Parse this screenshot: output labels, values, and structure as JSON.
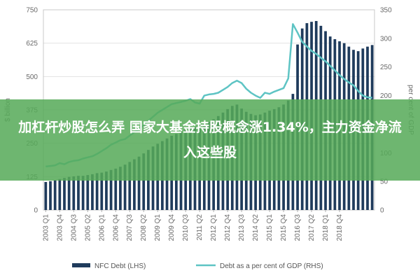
{
  "banner": {
    "text": "加杠杆炒股怎么弄 国家大基金持股概念涨1.34%，主力资金净流入这些股"
  },
  "colors": {
    "bars": "#1f3b5c",
    "line": "#5ec4c4",
    "banner": "#56aa58"
  },
  "chart_data": {
    "type": "bar",
    "title": "",
    "ylabel": "$ billion",
    "ylabel_right": "per cent of GDP",
    "ylim": [
      0,
      750
    ],
    "ylim_right": [
      0,
      350
    ],
    "y_ticks": [
      "0",
      "125",
      "250",
      "375",
      "500",
      "625",
      "750"
    ],
    "y_ticks_right": [
      "0",
      "50",
      "100",
      "150",
      "200",
      "250",
      "300",
      "350"
    ],
    "x_tick_labels": [
      "2003 Q1",
      "2003 Q4",
      "2004 Q3",
      "2005 Q2",
      "2006 Q1",
      "2006 Q4",
      "2007 Q3",
      "2008 Q2",
      "2009 Q1",
      "2009 Q4",
      "2010 Q3",
      "2011 Q2",
      "2012 Q1",
      "2012 Q4",
      "2013 Q3",
      "2014 Q2",
      "2015 Q1",
      "2015 Q4",
      "2016 Q3",
      "2017 Q2",
      "2018 Q1",
      "2018 Q4"
    ],
    "legend": [
      "NFC Debt (LHS)",
      "Debt as a per cent of GDP (RHS)"
    ],
    "series": [
      {
        "name": "NFC Debt (LHS)",
        "axis": "left",
        "type": "bar",
        "values": [
          105,
          108,
          112,
          116,
          120,
          124,
          126,
          128,
          128,
          131,
          134,
          138,
          140,
          144,
          150,
          155,
          162,
          170,
          180,
          190,
          200,
          212,
          225,
          238,
          248,
          258,
          268,
          278,
          285,
          292,
          300,
          306,
          310,
          316,
          322,
          330,
          340,
          352,
          365,
          378,
          390,
          395,
          380,
          368,
          360,
          355,
          358,
          365,
          372,
          378,
          385,
          395,
          410,
          435,
          620,
          680,
          700,
          705,
          708,
          690,
          670,
          650,
          640,
          632,
          625,
          612,
          600,
          595,
          605,
          612,
          618
        ]
      },
      {
        "name": "Debt as a per cent of GDP (RHS)",
        "axis": "right",
        "type": "line",
        "values": [
          76,
          77,
          78,
          82,
          80,
          84,
          86,
          87,
          90,
          92,
          94,
          98,
          103,
          108,
          114,
          118,
          122,
          124,
          130,
          136,
          141,
          148,
          156,
          163,
          170,
          175,
          180,
          185,
          187,
          189,
          191,
          194,
          188,
          186,
          200,
          202,
          203,
          205,
          210,
          215,
          222,
          226,
          222,
          212,
          205,
          200,
          196,
          205,
          203,
          207,
          210,
          213,
          230,
          325,
          310,
          294,
          286,
          278,
          273,
          266,
          260,
          252,
          244,
          236,
          229,
          223,
          218,
          208,
          200,
          197,
          196
        ]
      }
    ]
  }
}
